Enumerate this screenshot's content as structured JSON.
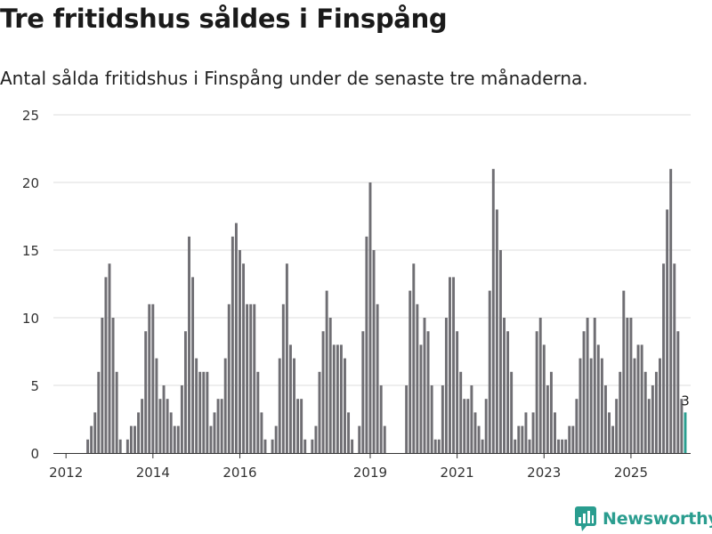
{
  "header": {
    "title": "Tre fritidshus såldes i Finspång",
    "subtitle": "Antal sålda fritidshus i Finspång under de senaste tre månaderna."
  },
  "brand": {
    "name": "Newsworthy"
  },
  "colors": {
    "bar": "#6f6e73",
    "highlight": "#2a9d8f",
    "grid": "#dddddd",
    "axis": "#333333"
  },
  "chart_data": {
    "type": "bar",
    "title": "Tre fritidshus såldes i Finspång",
    "xlabel": "",
    "ylabel": "",
    "ylim": [
      0,
      25
    ],
    "yticks": [
      "0",
      "5",
      "10",
      "15",
      "20",
      "25"
    ],
    "start_month": "2011-11",
    "xticks": [
      {
        "label": "2012",
        "index": 2
      },
      {
        "label": "2014",
        "index": 26
      },
      {
        "label": "2016",
        "index": 50
      },
      {
        "label": "2019",
        "index": 86
      },
      {
        "label": "2021",
        "index": 110
      },
      {
        "label": "2023",
        "index": 134
      },
      {
        "label": "2025",
        "index": 158
      }
    ],
    "values": [
      0,
      0,
      0,
      0,
      0,
      0,
      0,
      0,
      1,
      2,
      3,
      6,
      10,
      13,
      14,
      10,
      6,
      1,
      0,
      1,
      2,
      2,
      3,
      4,
      9,
      11,
      11,
      7,
      4,
      5,
      4,
      3,
      2,
      2,
      5,
      9,
      16,
      13,
      7,
      6,
      6,
      6,
      2,
      3,
      4,
      4,
      7,
      11,
      16,
      17,
      15,
      14,
      11,
      11,
      11,
      6,
      3,
      1,
      0,
      1,
      2,
      7,
      11,
      14,
      8,
      7,
      4,
      4,
      1,
      0,
      1,
      2,
      6,
      9,
      12,
      10,
      8,
      8,
      8,
      7,
      3,
      1,
      0,
      2,
      9,
      16,
      20,
      15,
      11,
      5,
      2,
      0,
      0,
      0,
      0,
      0,
      5,
      12,
      14,
      11,
      8,
      10,
      9,
      5,
      1,
      1,
      5,
      10,
      13,
      13,
      9,
      6,
      4,
      4,
      5,
      3,
      2,
      1,
      4,
      12,
      21,
      18,
      15,
      10,
      9,
      6,
      1,
      2,
      2,
      3,
      1,
      3,
      9,
      10,
      8,
      5,
      6,
      3,
      1,
      1,
      1,
      2,
      2,
      4,
      7,
      9,
      10,
      7,
      10,
      8,
      7,
      5,
      3,
      2,
      4,
      6,
      12,
      10,
      10,
      7,
      8,
      8,
      6,
      4,
      5,
      6,
      7,
      14,
      18,
      21,
      14,
      9,
      4,
      3
    ],
    "highlight_last": true,
    "last_label": "3"
  }
}
